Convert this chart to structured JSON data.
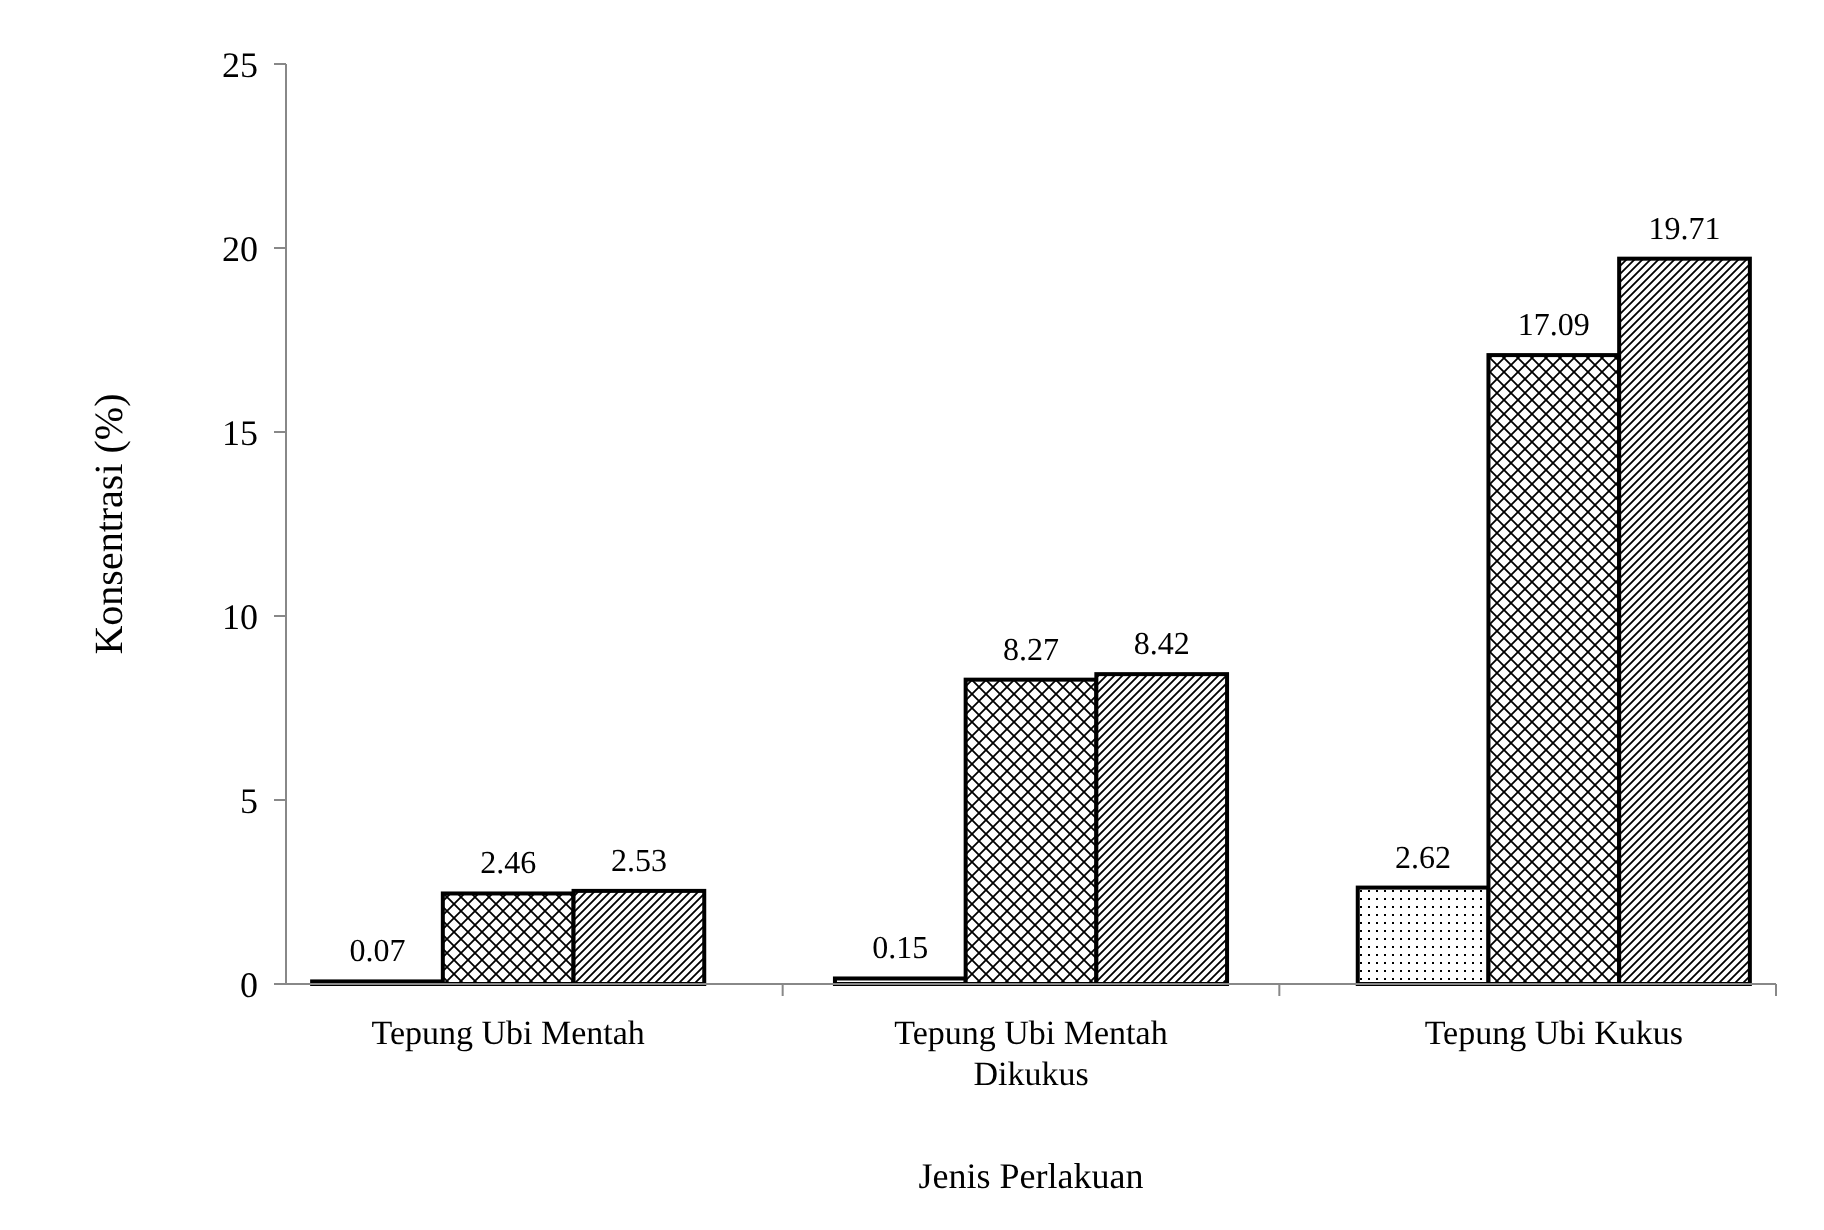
{
  "chart_data": {
    "type": "bar",
    "xlabel": "Jenis Perlakuan",
    "ylabel": "Konsentrasi (%)",
    "categories": [
      "Tepung Ubi Mentah",
      "Tepung Ubi Mentah Dikukus",
      "Tepung Ubi Kukus"
    ],
    "series": [
      {
        "color": "#000000",
        "values": [
          0.07,
          0.15,
          2.62
        ]
      },
      {
        "color": "#000000",
        "values": [
          2.46,
          8.27,
          17.09
        ]
      },
      {
        "color": "#000000",
        "values": [
          2.53,
          8.42,
          19.71
        ]
      }
    ],
    "ylim": [
      0,
      25
    ],
    "yticks": [
      0,
      5,
      10,
      15,
      20,
      25
    ],
    "data_labels": true
  }
}
